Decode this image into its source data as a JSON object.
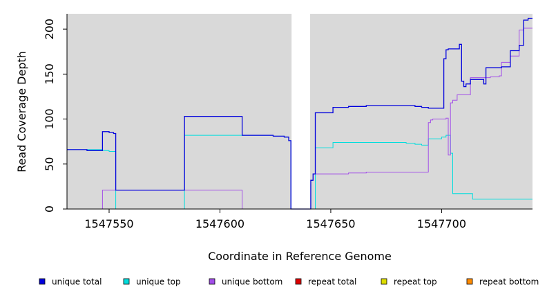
{
  "chart_data": {
    "type": "line",
    "title": "",
    "xlabel": "Coordinate in Reference Genome",
    "ylabel": "Read Coverage Depth",
    "xlim": [
      1547531,
      1547741
    ],
    "ylim": [
      0,
      217
    ],
    "x_ticks": [
      1547550,
      1547600,
      1547650,
      1547700
    ],
    "y_ticks": [
      0,
      50,
      100,
      150,
      200
    ],
    "background_color": "#d9d9d9",
    "gap_regions": [
      [
        1547632,
        1547641
      ]
    ],
    "legend_position": "bottom",
    "series": [
      {
        "name": "unique total",
        "color": "#0000dd",
        "points": [
          [
            1547531,
            66
          ],
          [
            1547540,
            66
          ],
          [
            1547540,
            65
          ],
          [
            1547547,
            65
          ],
          [
            1547547,
            86
          ],
          [
            1547550,
            86
          ],
          [
            1547550,
            85
          ],
          [
            1547552,
            85
          ],
          [
            1547552,
            84
          ],
          [
            1547553,
            84
          ],
          [
            1547553,
            21
          ],
          [
            1547584,
            21
          ],
          [
            1547584,
            103
          ],
          [
            1547610,
            103
          ],
          [
            1547610,
            82
          ],
          [
            1547624,
            82
          ],
          [
            1547624,
            81
          ],
          [
            1547629,
            81
          ],
          [
            1547629,
            80
          ],
          [
            1547631,
            80
          ],
          [
            1547631,
            76
          ],
          [
            1547632,
            76
          ],
          [
            1547632,
            0
          ],
          [
            1547641,
            0
          ],
          [
            1547641,
            32
          ],
          [
            1547642,
            32
          ],
          [
            1547642,
            39
          ],
          [
            1547643,
            39
          ],
          [
            1547643,
            107
          ],
          [
            1547651,
            107
          ],
          [
            1547651,
            113
          ],
          [
            1547658,
            113
          ],
          [
            1547658,
            114
          ],
          [
            1547666,
            114
          ],
          [
            1547666,
            115
          ],
          [
            1547688,
            115
          ],
          [
            1547688,
            114
          ],
          [
            1547691,
            114
          ],
          [
            1547691,
            113
          ],
          [
            1547694,
            113
          ],
          [
            1547694,
            112
          ],
          [
            1547701,
            112
          ],
          [
            1547701,
            167
          ],
          [
            1547702,
            167
          ],
          [
            1547702,
            177
          ],
          [
            1547703,
            177
          ],
          [
            1547703,
            178
          ],
          [
            1547708,
            178
          ],
          [
            1547708,
            183
          ],
          [
            1547709,
            183
          ],
          [
            1547709,
            142
          ],
          [
            1547710,
            142
          ],
          [
            1547710,
            136
          ],
          [
            1547711,
            136
          ],
          [
            1547711,
            139
          ],
          [
            1547713,
            139
          ],
          [
            1547713,
            144
          ],
          [
            1547719,
            144
          ],
          [
            1547719,
            139
          ],
          [
            1547720,
            139
          ],
          [
            1547720,
            157
          ],
          [
            1547727,
            157
          ],
          [
            1547727,
            158
          ],
          [
            1547731,
            158
          ],
          [
            1547731,
            176
          ],
          [
            1547735,
            176
          ],
          [
            1547735,
            182
          ],
          [
            1547737,
            182
          ],
          [
            1547737,
            210
          ],
          [
            1547739,
            210
          ],
          [
            1547739,
            212
          ],
          [
            1547741,
            212
          ]
        ]
      },
      {
        "name": "unique top",
        "color": "#00dddd",
        "points": [
          [
            1547531,
            66
          ],
          [
            1547547,
            66
          ],
          [
            1547547,
            65
          ],
          [
            1547550,
            65
          ],
          [
            1547550,
            64
          ],
          [
            1547553,
            64
          ],
          [
            1547553,
            0
          ],
          [
            1547584,
            0
          ],
          [
            1547584,
            82
          ],
          [
            1547624,
            82
          ],
          [
            1547624,
            81
          ],
          [
            1547629,
            81
          ],
          [
            1547629,
            80
          ],
          [
            1547631,
            80
          ],
          [
            1547631,
            76
          ],
          [
            1547632,
            76
          ],
          [
            1547632,
            0
          ],
          [
            1547643,
            0
          ],
          [
            1547643,
            68
          ],
          [
            1547651,
            68
          ],
          [
            1547651,
            74
          ],
          [
            1547684,
            74
          ],
          [
            1547684,
            73
          ],
          [
            1547688,
            73
          ],
          [
            1547688,
            72
          ],
          [
            1547691,
            72
          ],
          [
            1547691,
            71
          ],
          [
            1547694,
            71
          ],
          [
            1547694,
            78
          ],
          [
            1547700,
            78
          ],
          [
            1547700,
            80
          ],
          [
            1547702,
            80
          ],
          [
            1547702,
            82
          ],
          [
            1547704,
            82
          ],
          [
            1547704,
            62
          ],
          [
            1547705,
            62
          ],
          [
            1547705,
            17
          ],
          [
            1547714,
            17
          ],
          [
            1547714,
            11
          ],
          [
            1547741,
            11
          ]
        ]
      },
      {
        "name": "unique bottom",
        "color": "#a24ee8",
        "points": [
          [
            1547531,
            0
          ],
          [
            1547547,
            0
          ],
          [
            1547547,
            21
          ],
          [
            1547610,
            21
          ],
          [
            1547610,
            0
          ],
          [
            1547641,
            0
          ],
          [
            1547641,
            32
          ],
          [
            1547642,
            32
          ],
          [
            1547642,
            39
          ],
          [
            1547658,
            39
          ],
          [
            1547658,
            40
          ],
          [
            1547666,
            40
          ],
          [
            1547666,
            41
          ],
          [
            1547694,
            41
          ],
          [
            1547694,
            96
          ],
          [
            1547695,
            96
          ],
          [
            1547695,
            99
          ],
          [
            1547696,
            99
          ],
          [
            1547696,
            100
          ],
          [
            1547702,
            100
          ],
          [
            1547702,
            101
          ],
          [
            1547703,
            101
          ],
          [
            1547703,
            60
          ],
          [
            1547704,
            60
          ],
          [
            1547704,
            118
          ],
          [
            1547705,
            118
          ],
          [
            1547705,
            121
          ],
          [
            1547707,
            121
          ],
          [
            1547707,
            127
          ],
          [
            1547713,
            127
          ],
          [
            1547713,
            146
          ],
          [
            1547722,
            146
          ],
          [
            1547722,
            147
          ],
          [
            1547726,
            147
          ],
          [
            1547726,
            148
          ],
          [
            1547727,
            148
          ],
          [
            1547727,
            163
          ],
          [
            1547731,
            163
          ],
          [
            1547731,
            170
          ],
          [
            1547735,
            170
          ],
          [
            1547735,
            199
          ],
          [
            1547737,
            199
          ],
          [
            1547737,
            201
          ],
          [
            1547741,
            201
          ]
        ]
      },
      {
        "name": "repeat total",
        "color": "#dd0000",
        "points": [
          [
            1547531,
            0
          ],
          [
            1547741,
            0
          ]
        ]
      },
      {
        "name": "repeat top",
        "color": "#dddd00",
        "points": [
          [
            1547531,
            0
          ],
          [
            1547741,
            0
          ]
        ]
      },
      {
        "name": "repeat bottom",
        "color": "#ff8c00",
        "points": [
          [
            1547531,
            0
          ],
          [
            1547741,
            0
          ]
        ]
      }
    ]
  },
  "legend": [
    {
      "label": "unique total",
      "color": "#0000dd"
    },
    {
      "label": "unique top",
      "color": "#00dddd"
    },
    {
      "label": "unique bottom",
      "color": "#a24ee8"
    },
    {
      "label": "repeat total",
      "color": "#dd0000"
    },
    {
      "label": "repeat top",
      "color": "#dddd00"
    },
    {
      "label": "repeat bottom",
      "color": "#ff8c00"
    }
  ]
}
